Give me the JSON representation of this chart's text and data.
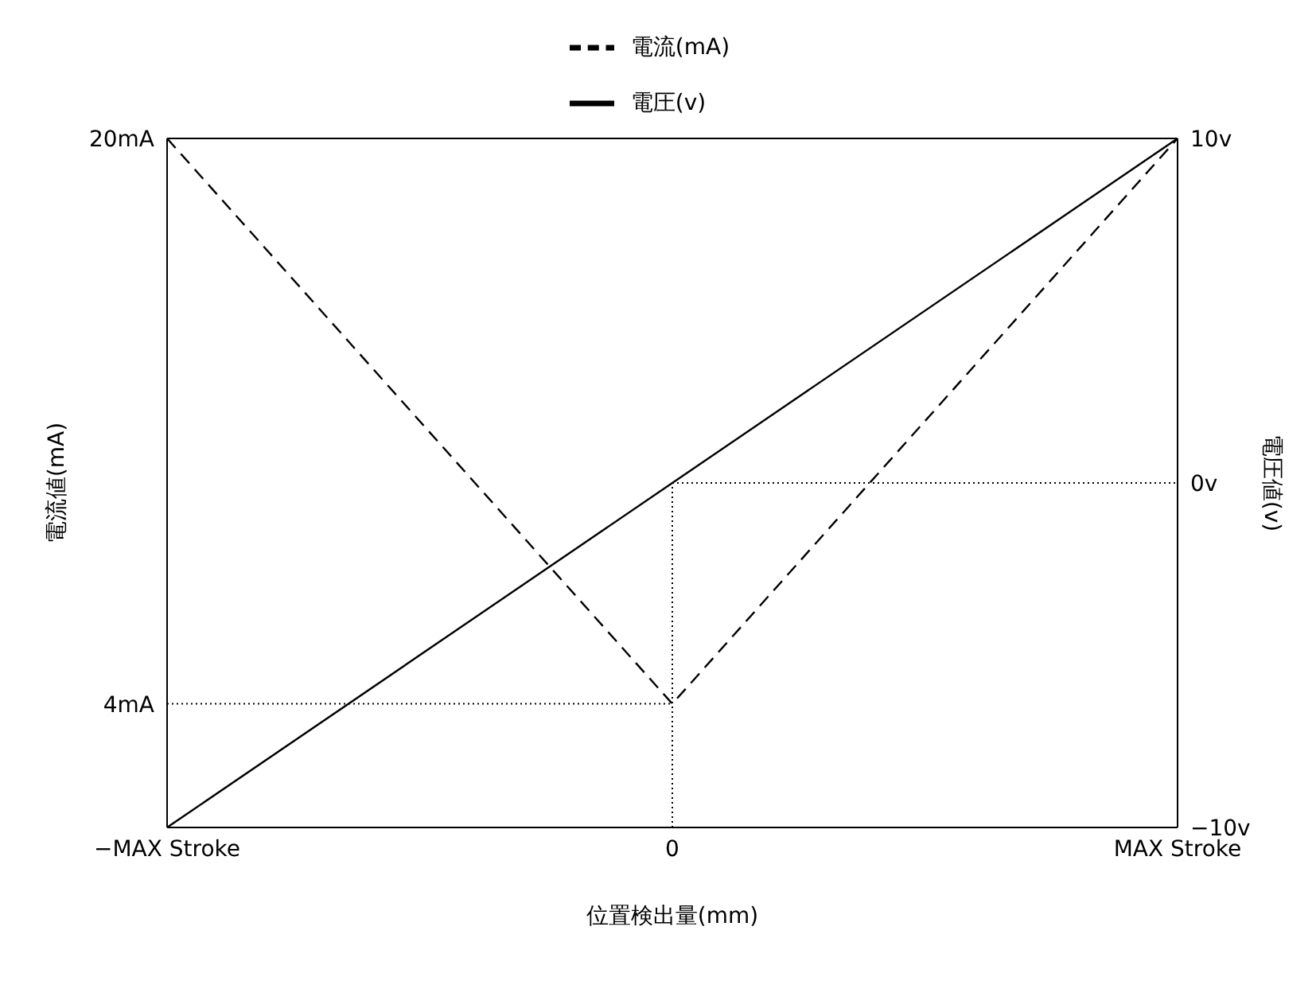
{
  "chart_data": {
    "type": "line",
    "xlabel": "位置検出量(mm)",
    "ylabel": "電流値(mA)",
    "y2label": "電圧値(v)",
    "categories": [
      "−MAX Stroke",
      "0",
      "MAX Stroke"
    ],
    "ylim": [
      0.5,
      20
    ],
    "yticks": [
      {
        "value": 4,
        "label": "4mA"
      },
      {
        "value": 20,
        "label": "20mA"
      }
    ],
    "y2lim": [
      -10,
      10
    ],
    "y2ticks": [
      {
        "value": -10,
        "label": "−10v"
      },
      {
        "value": 0,
        "label": "0v"
      },
      {
        "value": 10,
        "label": "10v"
      }
    ],
    "series": [
      {
        "name": "電流(mA)",
        "color": "#000000",
        "line_style": "dashed",
        "values": [
          20,
          4,
          20
        ]
      },
      {
        "name": "電圧(v)",
        "color": "#000000",
        "line_style": "solid",
        "axis": "y2",
        "values": [
          -10,
          0,
          10
        ]
      }
    ],
    "ref_lines": [
      {
        "axis": "y",
        "value": 4,
        "line_style": "dotted",
        "color": "#000000"
      },
      {
        "axis": "y2",
        "value": 0,
        "line_style": "dotted",
        "color": "#000000"
      },
      {
        "axis": "x",
        "value": "0",
        "line_style": "dotted",
        "color": "#000000"
      }
    ],
    "marker": "none",
    "legend": "top"
  }
}
